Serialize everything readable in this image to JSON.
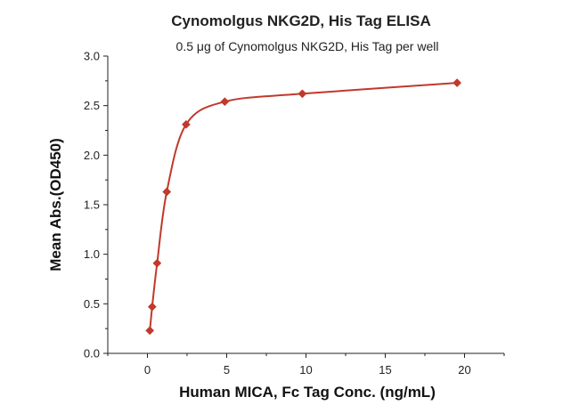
{
  "chart_data": {
    "type": "scatter",
    "title": "Cynomolgus NKG2D, His Tag ELISA",
    "subtitle": "0.5 μg of Cynomolgus NKG2D, His Tag per well",
    "xlabel": "Human MICA, Fc Tag Conc. (ng/mL)",
    "ylabel": "Mean Abs.(OD450)",
    "xlim": [
      -2.5,
      22.5
    ],
    "ylim": [
      0.0,
      3.0
    ],
    "x_ticks": [
      0,
      5,
      10,
      15,
      20
    ],
    "y_ticks": [
      0.0,
      0.5,
      1.0,
      1.5,
      2.0,
      2.5,
      3.0
    ],
    "x_tick_labels": [
      "0",
      "5",
      "10",
      "15",
      "20"
    ],
    "y_tick_labels": [
      "0.0",
      "0.5",
      "1.0",
      "1.5",
      "2.0",
      "2.5",
      "3.0"
    ],
    "grid": false,
    "legend": "none",
    "series": [
      {
        "marker": "diamond",
        "color": "#c0392b",
        "fit": "sigmoidal curve",
        "x": [
          0.15,
          0.3,
          0.61,
          1.22,
          2.44,
          4.88,
          9.77,
          19.53
        ],
        "y": [
          0.23,
          0.47,
          0.91,
          1.63,
          2.31,
          2.54,
          2.62,
          2.73
        ]
      }
    ]
  }
}
